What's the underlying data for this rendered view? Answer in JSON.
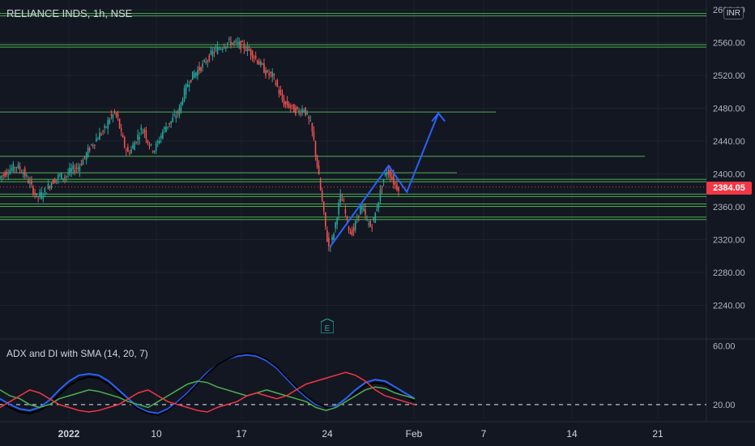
{
  "header": {
    "title": "RELIANCE INDS, 1h, NSE",
    "currency_badge": "INR",
    "indicator_title": "ADX and DI with SMA (14, 20, 7)",
    "last_price": "2384.05",
    "event_marker": "E"
  },
  "colors": {
    "background": "#131722",
    "grid": "#1e222d",
    "up": "#26a69a",
    "down": "#ef5350",
    "level_line": "#4caf50",
    "forecast": "#2962ff",
    "price_tag": "#f23645"
  },
  "chart_data": [
    {
      "type": "candlestick",
      "title": "RELIANCE INDS, 1h, NSE",
      "y_axis_ticks": [
        "2600.00",
        "2560.00",
        "2520.00",
        "2480.00",
        "2440.00",
        "2400.00",
        "2360.00",
        "2320.00",
        "2280.00",
        "2240.00"
      ],
      "ylim": [
        2200,
        2605
      ],
      "x_axis_labels": [
        "2022",
        "10",
        "17",
        "24",
        "Feb",
        "7",
        "14",
        "21"
      ],
      "last_price": 2384.05,
      "price_series": [
        [
          0,
          2395
        ],
        [
          6,
          2404
        ],
        [
          11,
          2410
        ],
        [
          15,
          2402
        ],
        [
          19,
          2388
        ],
        [
          23,
          2372
        ],
        [
          27,
          2376
        ],
        [
          32,
          2390
        ],
        [
          37,
          2398
        ],
        [
          40,
          2396
        ],
        [
          44,
          2405
        ],
        [
          48,
          2408
        ],
        [
          52,
          2420
        ],
        [
          55,
          2432
        ],
        [
          58,
          2440
        ],
        [
          61,
          2448
        ],
        [
          64,
          2454
        ],
        [
          67,
          2468
        ],
        [
          70,
          2474
        ],
        [
          72,
          2466
        ],
        [
          74,
          2448
        ],
        [
          76,
          2434
        ],
        [
          78,
          2426
        ],
        [
          80,
          2430
        ],
        [
          83,
          2442
        ],
        [
          86,
          2454
        ],
        [
          88,
          2452
        ],
        [
          90,
          2440
        ],
        [
          92,
          2432
        ],
        [
          94,
          2430
        ],
        [
          96,
          2438
        ],
        [
          99,
          2452
        ],
        [
          101,
          2458
        ],
        [
          104,
          2464
        ],
        [
          107,
          2472
        ],
        [
          109,
          2478
        ],
        [
          111,
          2494
        ],
        [
          114,
          2510
        ],
        [
          117,
          2520
        ],
        [
          120,
          2526
        ],
        [
          123,
          2532
        ],
        [
          126,
          2540
        ],
        [
          129,
          2548
        ],
        [
          132,
          2552
        ],
        [
          135,
          2556
        ],
        [
          138,
          2560
        ],
        [
          141,
          2560
        ],
        [
          144,
          2558
        ],
        [
          147,
          2556
        ],
        [
          150,
          2552
        ],
        [
          153,
          2546
        ],
        [
          156,
          2538
        ],
        [
          159,
          2530
        ],
        [
          162,
          2522
        ],
        [
          165,
          2520
        ],
        [
          168,
          2506
        ],
        [
          170,
          2494
        ],
        [
          172,
          2486
        ],
        [
          174,
          2484
        ],
        [
          176,
          2482
        ],
        [
          178,
          2478
        ],
        [
          181,
          2476
        ],
        [
          184,
          2480
        ],
        [
          186,
          2470
        ],
        [
          188,
          2460
        ],
        [
          190,
          2440
        ],
        [
          192,
          2410
        ],
        [
          194,
          2380
        ],
        [
          196,
          2350
        ],
        [
          198,
          2320
        ],
        [
          199,
          2312
        ],
        [
          201,
          2320
        ],
        [
          203,
          2340
        ],
        [
          205,
          2362
        ],
        [
          206,
          2372
        ],
        [
          208,
          2362
        ],
        [
          210,
          2340
        ],
        [
          212,
          2328
        ],
        [
          214,
          2332
        ],
        [
          216,
          2346
        ],
        [
          218,
          2360
        ],
        [
          220,
          2354
        ],
        [
          222,
          2342
        ],
        [
          224,
          2336
        ],
        [
          226,
          2344
        ],
        [
          228,
          2360
        ],
        [
          230,
          2378
        ],
        [
          232,
          2394
        ],
        [
          234,
          2404
        ],
        [
          236,
          2400
        ],
        [
          238,
          2390
        ],
        [
          240,
          2384
        ]
      ],
      "horizontal_levels": [
        2594,
        2556,
        2474,
        2420,
        2400,
        2392,
        2374,
        2362,
        2346
      ],
      "forecast_path": [
        [
          199,
          2312
        ],
        [
          234,
          2410
        ],
        [
          245,
          2378
        ],
        [
          264,
          2474
        ]
      ]
    },
    {
      "type": "line",
      "title": "ADX and DI with SMA (14, 20, 7)",
      "y_axis_ticks": [
        "60.00",
        "20.00"
      ],
      "ylim": [
        10,
        62
      ],
      "reference_line": 20,
      "series": [
        {
          "color": "#2962ff",
          "values": [
            24,
            20,
            17,
            16,
            18,
            23,
            30,
            36,
            40,
            41,
            40,
            36,
            30,
            24,
            18,
            15,
            14,
            17,
            22,
            28,
            35,
            42,
            47,
            51,
            53,
            54,
            53,
            50,
            45,
            38,
            31,
            25,
            20,
            18,
            19,
            24,
            30,
            35,
            37,
            36,
            32,
            28,
            24
          ]
        },
        {
          "color": "#131722",
          "values": [
            22,
            18,
            15,
            14,
            16,
            20,
            27,
            33,
            37,
            39,
            38,
            34,
            28,
            22,
            17,
            14,
            13,
            16,
            21,
            27,
            34,
            41,
            47,
            51,
            54,
            55,
            54,
            51,
            46,
            39,
            32,
            26,
            21,
            18,
            18,
            22,
            28,
            33,
            35,
            34,
            30,
            26,
            22
          ]
        },
        {
          "color": "#4caf50",
          "values": [
            30,
            26,
            24,
            20,
            18,
            20,
            24,
            26,
            28,
            30,
            29,
            27,
            25,
            22,
            20,
            18,
            22,
            26,
            30,
            34,
            36,
            35,
            32,
            30,
            28,
            26,
            28,
            30,
            28,
            26,
            24,
            22,
            18,
            16,
            18,
            22,
            26,
            30,
            32,
            31,
            28,
            26,
            24
          ]
        },
        {
          "color": "#f23645",
          "values": [
            18,
            22,
            26,
            30,
            28,
            24,
            20,
            18,
            16,
            15,
            16,
            18,
            20,
            24,
            28,
            30,
            26,
            22,
            20,
            18,
            16,
            15,
            18,
            20,
            22,
            26,
            28,
            26,
            24,
            26,
            30,
            34,
            36,
            38,
            40,
            42,
            40,
            36,
            30,
            26,
            24,
            22,
            20
          ]
        }
      ]
    }
  ]
}
